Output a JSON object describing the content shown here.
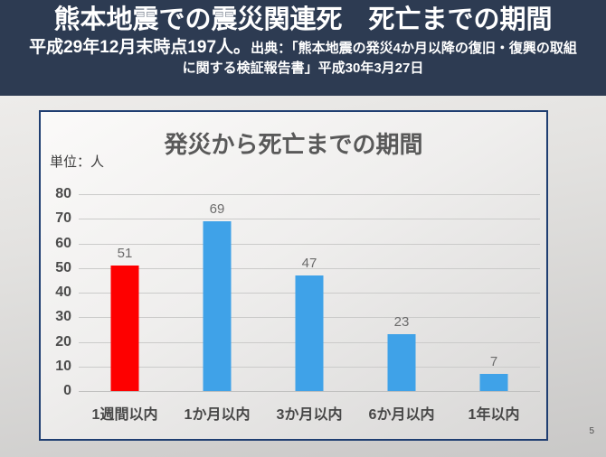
{
  "header": {
    "title": "熊本地震での震災関連死　死亡までの期間",
    "subtitle_point": "平成29年12月末時点197人。",
    "subtitle_source_line1": "出典：「熊本地震の発災4か月以降の復旧・復興の取組",
    "subtitle_source_line2": "に関する検証報告書」平成30年3月27日"
  },
  "page_number": "5",
  "chart_data": {
    "type": "bar",
    "title": "発災から死亡までの期間",
    "unit_label": "単位：人",
    "categories": [
      "1週間以内",
      "1か月以内",
      "3か月以内",
      "6か月以内",
      "1年以内"
    ],
    "values": [
      51,
      69,
      47,
      23,
      7
    ],
    "bar_colors": [
      "#fe0000",
      "#3fa2e8",
      "#3fa2e8",
      "#3fa2e8",
      "#3fa2e8"
    ],
    "xlabel": "",
    "ylabel": "",
    "ylim": [
      0,
      80
    ],
    "ytick_interval": 10,
    "grid": true,
    "legend": "none"
  },
  "colors": {
    "header_bg": "#2d3b52",
    "panel_border": "#1f3e71",
    "bar_blue": "#3fa2e8",
    "bar_highlight_red": "#fe0000",
    "text_on_header": "#ffffff",
    "chart_text_gray": "#595959"
  }
}
